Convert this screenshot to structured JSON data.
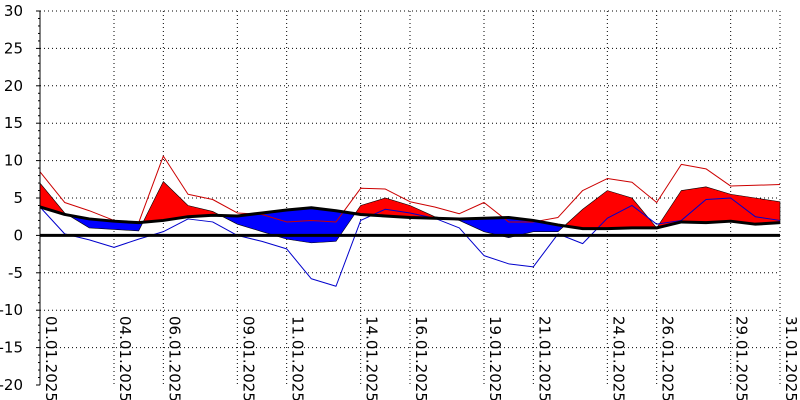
{
  "chart_data": {
    "type": "area",
    "title": "",
    "xlabel": "",
    "ylabel": "",
    "ylim": [
      -20,
      30
    ],
    "yticks": [
      -20,
      -15,
      -10,
      -5,
      0,
      5,
      10,
      15,
      20,
      25,
      30
    ],
    "x_tick_labels": [
      {
        "day": 1,
        "label": "01.01.2025"
      },
      {
        "day": 4,
        "label": "04.01.2025"
      },
      {
        "day": 6,
        "label": "06.01.2025"
      },
      {
        "day": 9,
        "label": "09.01.2025"
      },
      {
        "day": 11,
        "label": "11.01.2025"
      },
      {
        "day": 14,
        "label": "14.01.2025"
      },
      {
        "day": 16,
        "label": "16.01.2025"
      },
      {
        "day": 19,
        "label": "19.01.2025"
      },
      {
        "day": 21,
        "label": "21.01.2025"
      },
      {
        "day": 24,
        "label": "24.01.2025"
      },
      {
        "day": 26,
        "label": "26.01.2025"
      },
      {
        "day": 29,
        "label": "29.01.2025"
      },
      {
        "day": 31,
        "label": "31.01.2025"
      }
    ],
    "grid": true,
    "colors": {
      "warm_fill": "#ff0000",
      "cold_fill": "#0000ff",
      "max_line": "#cc0000",
      "min_line": "#0000cc",
      "normal_line": "#000000",
      "zero_line": "#000000",
      "grid": "#000000"
    },
    "days": [
      1,
      2,
      3,
      4,
      5,
      6,
      7,
      8,
      9,
      10,
      11,
      12,
      13,
      14,
      15,
      16,
      17,
      18,
      19,
      20,
      21,
      22,
      23,
      24,
      25,
      26,
      27,
      28,
      29,
      30,
      31
    ],
    "mean": [
      7.0,
      3.0,
      1.0,
      0.8,
      0.6,
      7.2,
      4.0,
      3.2,
      1.5,
      0.5,
      -0.5,
      -1.0,
      -0.8,
      4.0,
      5.0,
      4.0,
      2.5,
      2.0,
      0.5,
      -0.3,
      0.5,
      0.5,
      3.5,
      6.0,
      5.0,
      1.0,
      6.0,
      6.5,
      5.5,
      5.0,
      4.5
    ],
    "normal": [
      3.8,
      2.8,
      2.2,
      1.9,
      1.7,
      2.0,
      2.5,
      2.7,
      2.6,
      3.0,
      3.4,
      3.7,
      3.3,
      2.8,
      2.6,
      2.4,
      2.3,
      2.2,
      2.3,
      2.4,
      2.0,
      1.4,
      0.9,
      0.9,
      1.0,
      1.0,
      1.8,
      1.7,
      1.9,
      1.5,
      1.7
    ],
    "max": [
      8.5,
      4.4,
      3.3,
      2.0,
      1.7,
      10.6,
      5.5,
      4.8,
      3.0,
      2.8,
      1.8,
      2.0,
      1.8,
      6.3,
      6.2,
      4.5,
      3.8,
      2.9,
      4.4,
      1.8,
      1.8,
      2.4,
      6.0,
      7.6,
      7.1,
      4.4,
      9.5,
      8.9,
      6.6,
      6.7,
      6.8
    ],
    "min": [
      3.8,
      0.2,
      -0.6,
      -1.6,
      -0.5,
      0.5,
      2.2,
      1.8,
      0.0,
      -0.8,
      -1.8,
      -5.8,
      -6.8,
      2.0,
      3.5,
      3.0,
      2.3,
      1.0,
      -2.7,
      -3.8,
      -4.2,
      0.2,
      -1.1,
      2.3,
      4.0,
      1.5,
      2.0,
      4.8,
      5.0,
      2.5,
      2.0
    ]
  }
}
